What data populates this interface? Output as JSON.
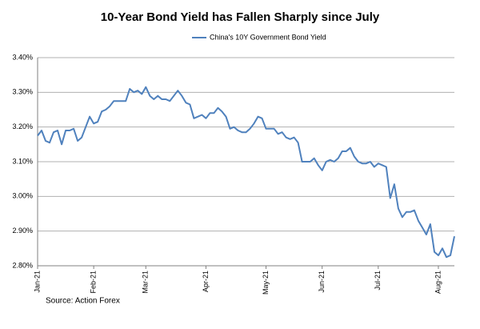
{
  "chart_data": {
    "type": "line",
    "title": "10-Year Bond Yield has Fallen Sharply since July",
    "source": "Source: Action Forex",
    "categories": [
      "Jan-21",
      null,
      null,
      null,
      null,
      null,
      null,
      null,
      null,
      null,
      null,
      null,
      null,
      null,
      "Feb-21",
      null,
      null,
      null,
      null,
      null,
      null,
      null,
      null,
      null,
      null,
      null,
      null,
      "Mar-21",
      null,
      null,
      null,
      null,
      null,
      null,
      null,
      null,
      null,
      null,
      null,
      null,
      null,
      null,
      "Apr-21",
      null,
      null,
      null,
      null,
      null,
      null,
      null,
      null,
      null,
      null,
      null,
      null,
      null,
      null,
      "May-21",
      null,
      null,
      null,
      null,
      null,
      null,
      null,
      null,
      null,
      null,
      null,
      null,
      null,
      "Jun-21",
      null,
      null,
      null,
      null,
      null,
      null,
      null,
      null,
      null,
      null,
      null,
      null,
      null,
      "Jul-21",
      null,
      null,
      null,
      null,
      null,
      null,
      null,
      null,
      null,
      null,
      null,
      null,
      null,
      null,
      "Aug-21",
      null,
      null,
      null,
      null
    ],
    "series": [
      {
        "name": "China's 10Y Government Bond Yield",
        "color": "#4f81bd",
        "values": [
          3.175,
          3.19,
          3.16,
          3.155,
          3.185,
          3.19,
          3.15,
          3.19,
          3.19,
          3.195,
          3.16,
          3.17,
          3.2,
          3.23,
          3.21,
          3.215,
          3.245,
          3.25,
          3.26,
          3.275,
          3.275,
          3.275,
          3.275,
          3.31,
          3.3,
          3.305,
          3.295,
          3.315,
          3.29,
          3.28,
          3.29,
          3.28,
          3.28,
          3.275,
          3.29,
          3.305,
          3.29,
          3.27,
          3.265,
          3.225,
          3.23,
          3.235,
          3.225,
          3.24,
          3.24,
          3.255,
          3.245,
          3.23,
          3.195,
          3.2,
          3.19,
          3.185,
          3.185,
          3.195,
          3.21,
          3.23,
          3.225,
          3.195,
          3.195,
          3.195,
          3.18,
          3.185,
          3.17,
          3.165,
          3.17,
          3.155,
          3.1,
          3.1,
          3.1,
          3.11,
          3.09,
          3.075,
          3.1,
          3.105,
          3.1,
          3.11,
          3.13,
          3.13,
          3.14,
          3.115,
          3.1,
          3.095,
          3.095,
          3.1,
          3.085,
          3.095,
          3.09,
          3.085,
          2.995,
          3.035,
          2.965,
          2.94,
          2.955,
          2.955,
          2.96,
          2.93,
          2.91,
          2.89,
          2.92,
          2.84,
          2.83,
          2.85,
          2.825,
          2.83,
          2.885
        ]
      }
    ],
    "ylim": [
      2.8,
      3.4
    ],
    "yticks": [
      {
        "value": 2.8,
        "label": "2.80%"
      },
      {
        "value": 2.9,
        "label": "2.90%"
      },
      {
        "value": 3.0,
        "label": "3.00%"
      },
      {
        "value": 3.1,
        "label": "3.10%"
      },
      {
        "value": 3.2,
        "label": "3.20%"
      },
      {
        "value": 3.3,
        "label": "3.30%"
      },
      {
        "value": 3.4,
        "label": "3.40%"
      }
    ],
    "grid": true
  }
}
